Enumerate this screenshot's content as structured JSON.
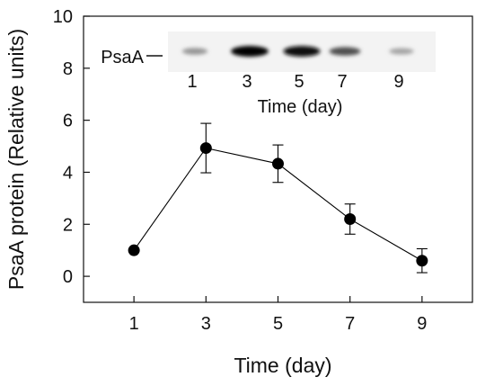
{
  "chart_data": {
    "type": "line",
    "title": "",
    "xlabel": "Time (day)",
    "ylabel": "PsaA protein (Relative units)",
    "x": [
      1,
      3,
      5,
      7,
      9
    ],
    "xticks": [
      "1",
      "3",
      "5",
      "7",
      "9"
    ],
    "yticks": [
      "0",
      "2",
      "4",
      "6",
      "8",
      "10"
    ],
    "xlim": [
      -0.4,
      10.4
    ],
    "ylim": [
      -1,
      10
    ],
    "grid": false,
    "series": [
      {
        "values": [
          1.0,
          4.93,
          4.33,
          2.2,
          0.6
        ],
        "error": [
          0.0,
          0.95,
          0.72,
          0.58,
          0.46
        ],
        "color": "#000000",
        "marker": "filled-circle"
      }
    ],
    "inset": {
      "band_label": "PsaA",
      "lanes": [
        "1",
        "3",
        "5",
        "7",
        "9"
      ],
      "lane_intensity": [
        0.25,
        1.0,
        0.95,
        0.6,
        0.18
      ],
      "xlabel": "Time (day)"
    }
  }
}
